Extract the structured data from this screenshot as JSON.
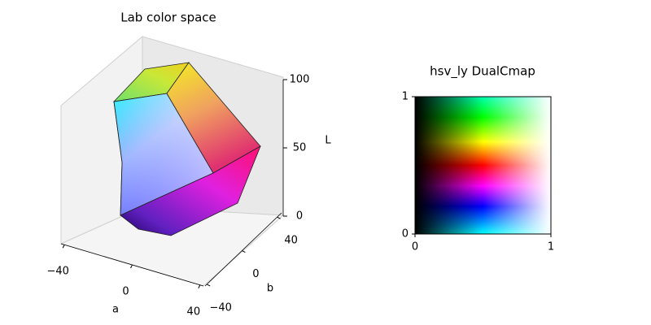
{
  "chart_data": [
    {
      "type": "surface3d",
      "title": "Lab color space",
      "xlabel": "a",
      "ylabel": "b",
      "zlabel": "L",
      "xlim": [
        -42,
        42
      ],
      "ylim": [
        -42,
        45
      ],
      "zlim": [
        0,
        100
      ],
      "xticks": [
        {
          "value": -40,
          "label": "−40"
        },
        0,
        40
      ],
      "yticks": [
        {
          "value": -40,
          "label": "−40"
        },
        0,
        40
      ],
      "zticks": [
        0,
        50,
        100
      ]
    },
    {
      "type": "image",
      "title": "hsv_ly DualCmap",
      "xlim": [
        0,
        1
      ],
      "ylim": [
        0,
        1
      ],
      "xticks": [
        0,
        1
      ],
      "yticks": [
        0,
        1
      ]
    }
  ]
}
